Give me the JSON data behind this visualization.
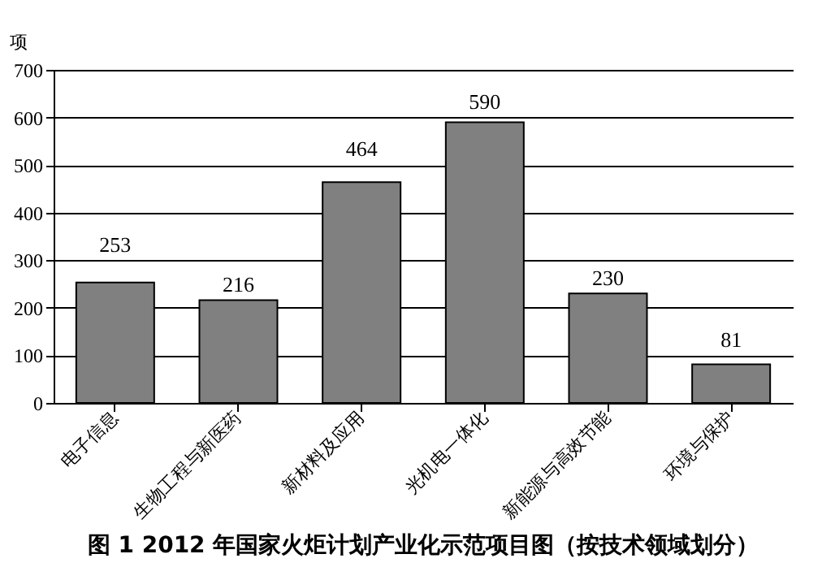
{
  "chart_data": {
    "type": "bar",
    "title": "图 1 2012 年国家火炬计划产业化示范项目图（按技术领域划分）",
    "ylabel": "项",
    "categories": [
      "电子信息",
      "生物工程与新医药",
      "新材料及应用",
      "光机电一体化",
      "新能源与高效节能",
      "环境与保护"
    ],
    "values": [
      253,
      216,
      464,
      590,
      230,
      81
    ],
    "color": "#808080",
    "ylim": [
      0,
      700
    ],
    "yticks": [
      0,
      100,
      200,
      300,
      400,
      500,
      600,
      700
    ],
    "grid": "y",
    "data_labels": true
  }
}
